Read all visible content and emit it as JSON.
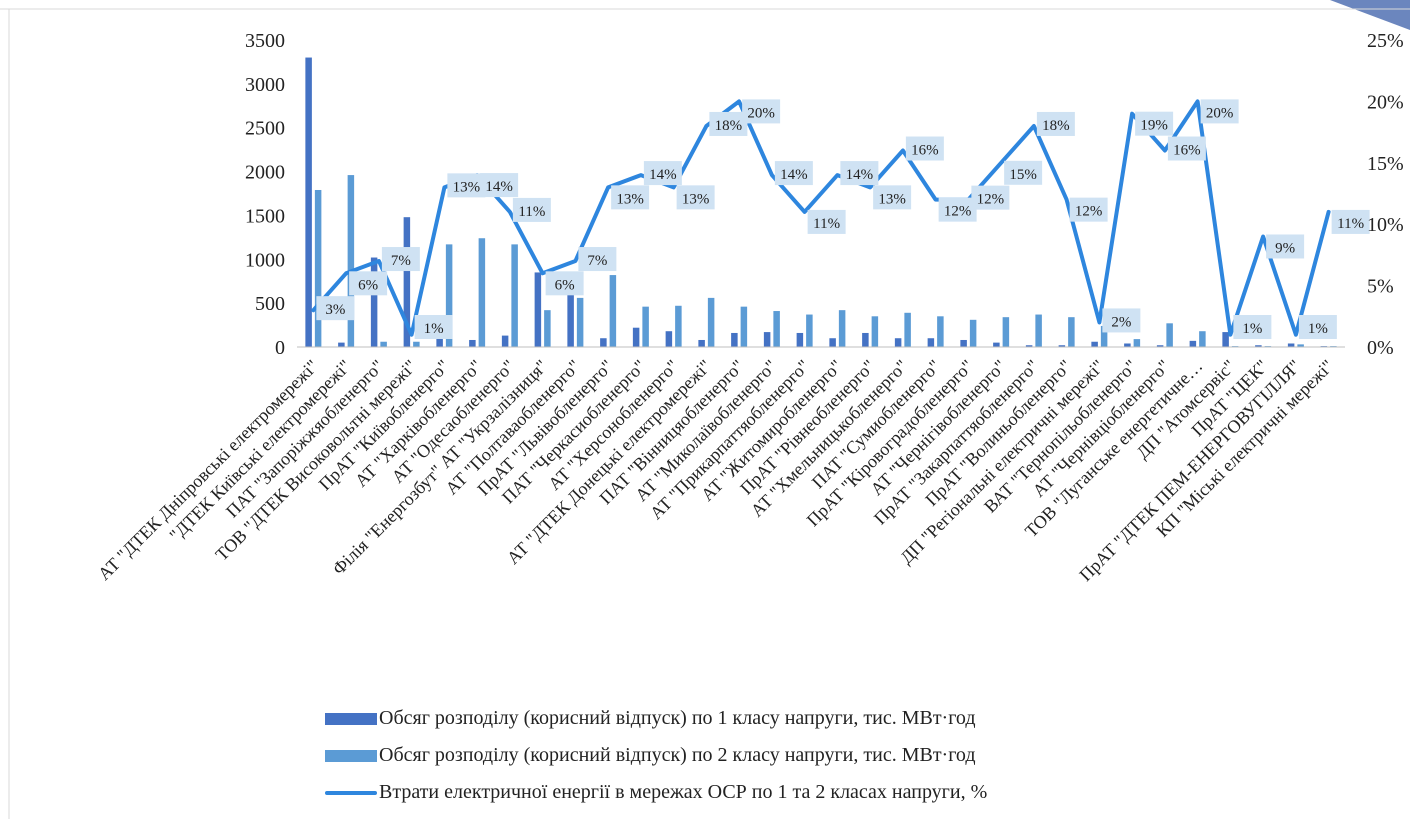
{
  "chart_data": {
    "type": "bar",
    "categories": [
      "АТ \"ДТЕК Дніпровські електромережі\"",
      "\"ДТЕК Київські електромережі\"",
      "ПАТ \"Запоріжжяобленерго\"",
      "ТОВ \"ДТЕК Високовольтні мережі\"",
      "ПрАТ \"Київобленерго\"",
      "АТ \"Харківобленерго\"",
      "АТ \"Одесаобленерго\"",
      "Філія \"Енергозбут\" АТ \"Укрзалізниця\"",
      "АТ \"Полтаваобленерго\"",
      "ПрАТ \"Львівобленерго\"",
      "ПАТ \"Черкасиобленерго\"",
      "АТ \"Херсонобленерго\"",
      "АТ \"ДТЕК Донецькі електромережі\"",
      "ПАТ \"Вінницяобленерго\"",
      "АТ \"Миколаївобленерго\"",
      "АТ \"Прикарпаттяобленерго\"",
      "АТ \"Житомиробленерго\"",
      "ПрАТ \"Рівнеобленерго\"",
      "АТ \"Хмельницькобленерго\"",
      "ПАТ \"Сумиобленерго\"",
      "ПрАТ \"Кіровоградобленерго\"",
      "АТ \"Чернігівобленерго\"",
      "ПрАТ \"Закарпаттяобленерго\"",
      "ПрАТ \"Волиньобленерго\"",
      "ДП \"Регіональні електричні мережі\"",
      "ВАТ \"Тернопільобленерго\"",
      "АТ \"Чернівціобленерго\"",
      "ТОВ \"Луганське енергетичне…",
      "ДП \"Атомсервіс\"",
      "ПрАТ \"ЦЕК\"",
      "ПрАТ \"ДТЕК ПЕМ-ЕНЕРГОВУГІЛЛЯ\"",
      "КП \"Міські електричні мережі\""
    ],
    "series": [
      {
        "name": "Обсяг розподілу (корисний відпуск) по 1 класу напруги, тис. МВт·год",
        "type": "bar",
        "axis": "left",
        "color": "#4472C4",
        "values": [
          3300,
          50,
          1020,
          1480,
          200,
          80,
          130,
          850,
          620,
          100,
          220,
          180,
          80,
          160,
          170,
          160,
          100,
          160,
          100,
          100,
          80,
          50,
          20,
          20,
          60,
          40,
          20,
          70,
          170,
          20,
          40,
          10
        ]
      },
      {
        "name": "Обсяг розподілу (корисний відпуск) по 2 класу напруги, тис. МВт·год",
        "type": "bar",
        "axis": "left",
        "color": "#5B9BD5",
        "values": [
          1790,
          1960,
          60,
          60,
          1170,
          1240,
          1170,
          420,
          560,
          820,
          460,
          470,
          560,
          460,
          410,
          370,
          420,
          350,
          390,
          350,
          310,
          340,
          370,
          340,
          240,
          90,
          270,
          180,
          10,
          10,
          30,
          10
        ]
      },
      {
        "name": "Втрати електричної енергії в мережах ОСР по 1 та 2 класах напруги, %",
        "type": "line",
        "axis": "right",
        "color": "#2E86DE",
        "values": [
          3,
          6,
          7,
          1,
          13,
          14,
          11,
          6,
          7,
          13,
          14,
          13,
          18,
          20,
          14,
          11,
          14,
          13,
          16,
          12,
          12,
          15,
          18,
          12,
          2,
          19,
          16,
          20,
          1,
          9,
          1,
          11
        ],
        "labels": [
          "3%",
          "6%",
          "7%",
          "1%",
          "13%",
          "14%",
          "11%",
          "6%",
          "7%",
          "13%",
          "14%",
          "13%",
          "18%",
          "20%",
          "14%",
          "11%",
          "14%",
          "13%",
          "16%",
          "12%",
          "12%",
          "15%",
          "18%",
          "12%",
          "2%",
          "19%",
          "16%",
          "20%",
          "1%",
          "9%",
          "1%",
          "11%"
        ]
      }
    ],
    "y_left": {
      "min": 0,
      "max": 3500,
      "ticks": [
        "0",
        "500",
        "1000",
        "1500",
        "2000",
        "2500",
        "3000",
        "3500"
      ]
    },
    "y_right": {
      "min": 0,
      "max": 25,
      "ticks": [
        "0%",
        "5%",
        "10%",
        "15%",
        "20%",
        "25%"
      ]
    },
    "grid": false,
    "legend_position": "bottom"
  }
}
